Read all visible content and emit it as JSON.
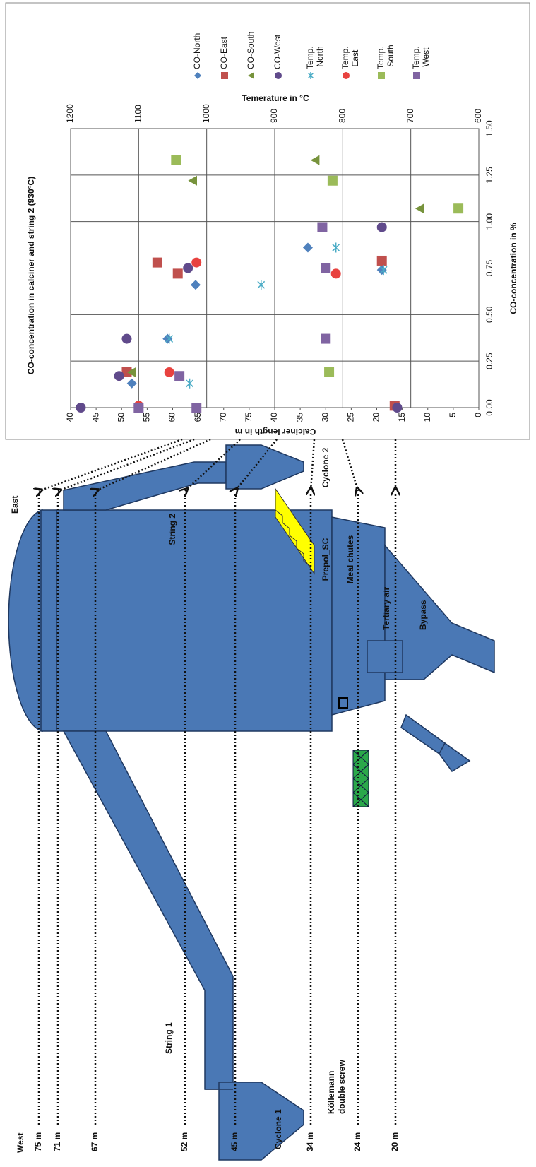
{
  "diagram": {
    "labels": {
      "west": "West",
      "east": "East",
      "string_1": "String 1",
      "string_2": "String 2",
      "cyclone_1": "Cyclone 1",
      "cyclone_2": "Cyclone 2",
      "prepol": "Prepol_SC",
      "meal_chutes": "Meal chutes",
      "tertiary_air": "Tertiary air",
      "bypass": "Bypass",
      "koellemann": [
        "Köllemann",
        "double screw"
      ]
    },
    "levels": [
      "75 m",
      "71 m",
      "67 m",
      "52 m",
      "45 m",
      "34 m",
      "24 m",
      "20 m"
    ]
  },
  "chart_data": {
    "type": "scatter",
    "title": "CO-concentration in calciner and string 2 (930°C)",
    "x_label": "CO-concentration in %",
    "y_label": "Calciner length in m",
    "y2_label": "Temerature in °C",
    "xlim": [
      0,
      1.5
    ],
    "xticks": [
      {
        "value": 0,
        "label": "0.00"
      },
      0.25,
      {
        "value": 0.5,
        "label": "0.50"
      },
      0.75,
      {
        "value": 1,
        "label": "1.00"
      },
      1.25,
      {
        "value": 1.5,
        "label": "1.50"
      }
    ],
    "ylim": [
      0,
      80
    ],
    "yticks": [
      0,
      5,
      10,
      15,
      20,
      25,
      30,
      35,
      40,
      {
        "value": 45,
        "label": "75"
      },
      {
        "value": 50,
        "label": "70"
      },
      {
        "value": 55,
        "label": "65"
      },
      {
        "value": 60,
        "label": "60"
      },
      {
        "value": 65,
        "label": "55"
      },
      {
        "value": 70,
        "label": "50"
      },
      {
        "value": 75,
        "label": "45"
      },
      {
        "value": 80,
        "label": "40"
      }
    ],
    "y2lim": [
      600,
      1200
    ],
    "y2ticks": [
      600,
      700,
      800,
      900,
      1000,
      1100,
      1200
    ],
    "grid": true,
    "series": [
      {
        "name": "CO-North",
        "color": "#4f81bd",
        "marker": "diamond",
        "x": [
          0.13,
          0.37,
          0.66,
          0.74,
          0.86
        ],
        "values": [
          68,
          61,
          55.5,
          19,
          33.5
        ]
      },
      {
        "name": "CO-East",
        "color": "#c0504d",
        "marker": "square",
        "x": [
          0.01,
          0.19,
          0.72,
          0.78,
          0.79
        ],
        "values": [
          16.5,
          69,
          59,
          63,
          19
        ]
      },
      {
        "name": "CO-South",
        "color": "#77933c",
        "marker": "triangle",
        "x": [
          0.19,
          1.07,
          1.22,
          1.33
        ],
        "values": [
          68,
          11.5,
          56,
          32
        ]
      },
      {
        "name": "CO-West",
        "color": "#604a8b",
        "marker": "circle",
        "x": [
          0,
          0,
          0.17,
          0.37,
          0.75,
          0.97
        ],
        "values": [
          78,
          16,
          70.5,
          69,
          57,
          19
        ]
      },
      {
        "name": "Temp. North",
        "color": "#4bacc6",
        "marker": "asterisk",
        "axis": "y2",
        "x": [
          0.13,
          0.37,
          0.66,
          0.74,
          0.86
        ],
        "values": [
          1025,
          1055,
          920,
          740,
          810
        ]
      },
      {
        "name": "Temp. East",
        "color": "#e8423f",
        "marker": "circle",
        "axis": "y2",
        "x": [
          0.01,
          0.19,
          0.78,
          0.72
        ],
        "values": [
          1100,
          1055,
          1015,
          810
        ]
      },
      {
        "name": "Temp. South",
        "color": "#9bbb59",
        "marker": "square",
        "axis": "y2",
        "x": [
          0.19,
          1.07,
          1.22,
          1.33
        ],
        "values": [
          820,
          630,
          815,
          1045
        ]
      },
      {
        "name": "Temp. West",
        "color": "#8064a2",
        "marker": "square",
        "axis": "y2",
        "x": [
          0,
          0,
          0.17,
          0.37,
          0.75,
          0.97
        ],
        "values": [
          1100,
          1015,
          1040,
          825,
          825,
          830
        ]
      }
    ]
  }
}
